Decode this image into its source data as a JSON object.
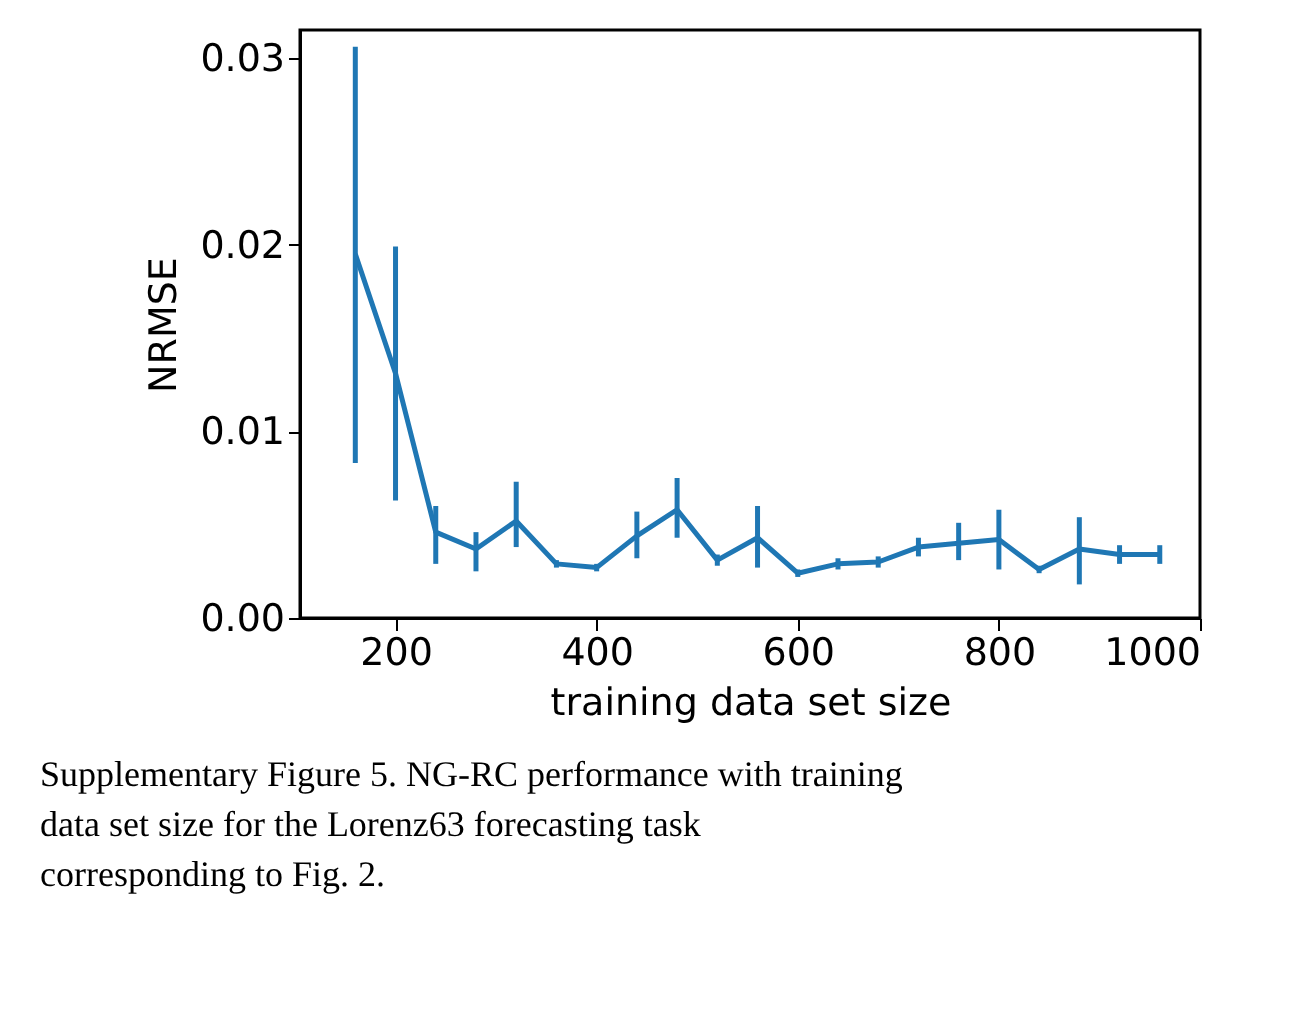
{
  "chart_data": {
    "type": "line",
    "xlabel": "training data set size",
    "ylabel": "NRMSE",
    "x": [
      160,
      200,
      240,
      280,
      320,
      360,
      400,
      440,
      480,
      520,
      560,
      600,
      640,
      680,
      720,
      760,
      800,
      840,
      880,
      920,
      960
    ],
    "series": [
      {
        "color": "#1f77b4",
        "values": [
          0.0195,
          0.0131,
          0.0046,
          0.0037,
          0.0052,
          0.0029,
          0.0027,
          0.0044,
          0.0058,
          0.0031,
          0.0043,
          0.0024,
          0.0029,
          0.003,
          0.0038,
          0.004,
          0.0042,
          0.0026,
          0.0037,
          0.0034,
          0.0034
        ],
        "errors": [
          [
            0.0083,
            0.0306
          ],
          [
            0.0063,
            0.0199
          ],
          [
            0.0029,
            0.006
          ],
          [
            0.0025,
            0.0046
          ],
          [
            0.0038,
            0.0073
          ],
          0.0002,
          0.0002,
          [
            0.0032,
            0.0057
          ],
          [
            0.0043,
            0.0075
          ],
          0.0003,
          [
            0.0027,
            0.006
          ],
          0.0002,
          0.0003,
          0.0003,
          0.0005,
          [
            0.0031,
            0.0051
          ],
          [
            0.0026,
            0.0058
          ],
          0.0002,
          [
            0.0018,
            0.0054
          ],
          0.0005,
          0.0005
        ]
      }
    ],
    "xlim": [
      105,
      1000
    ],
    "xticks": [
      200,
      400,
      600,
      800,
      1000
    ],
    "ylim": [
      0,
      0.0315
    ],
    "yticks": [
      {
        "value": 0,
        "label": "0.00"
      },
      {
        "value": 0.01,
        "label": "0.01"
      },
      {
        "value": 0.02,
        "label": "0.02"
      },
      {
        "value": 0.03,
        "label": "0.03"
      }
    ],
    "grid": false,
    "marker": "none",
    "line_style": "solid",
    "annotations": [
      "Supplementary Figure 5.  NG-RC performance with training data set size for the Lorenz63 forecasting task corresponding to Fig. 2."
    ]
  }
}
